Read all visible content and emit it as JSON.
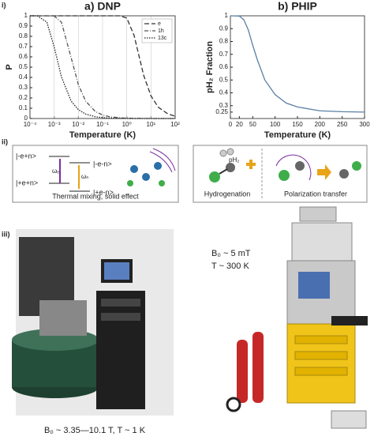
{
  "chart_data": [
    {
      "type": "line",
      "title": "a) DNP",
      "xlabel": "Temperature (K)",
      "ylabel": "P",
      "xscale": "log",
      "xlim": [
        0.0001,
        100
      ],
      "xticks": [
        {
          "value": 0.0001,
          "label": "10⁻⁴"
        },
        {
          "value": 0.001,
          "label": "10⁻³"
        },
        {
          "value": 0.01,
          "label": "10⁻²"
        },
        {
          "value": 0.1,
          "label": "10⁻¹"
        },
        {
          "value": 1,
          "label": "10⁰"
        },
        {
          "value": 10,
          "label": "10¹"
        },
        {
          "value": 100,
          "label": "10²"
        }
      ],
      "ylim": [
        0,
        1
      ],
      "yticks": [
        0,
        0.1,
        0.2,
        0.3,
        0.4,
        0.5,
        0.6,
        0.7,
        0.8,
        0.9,
        1
      ],
      "grid": "x",
      "legend": "upper right",
      "x": [
        0.0001,
        0.0002,
        0.0005,
        0.001,
        0.002,
        0.005,
        0.01,
        0.02,
        0.05,
        0.1,
        0.2,
        0.5,
        1,
        2,
        5,
        10,
        20,
        50,
        100
      ],
      "series": [
        {
          "name": "e",
          "color": "#333333",
          "dash": "6,3",
          "values": [
            1,
            1,
            1,
            1,
            1,
            1,
            1,
            1,
            1,
            1,
            1,
            1,
            0.978,
            0.81,
            0.42,
            0.22,
            0.11,
            0.045,
            0.022
          ]
        },
        {
          "name": "1h",
          "color": "#555555",
          "dash": "5,2,1,2",
          "values": [
            1,
            1,
            1,
            0.998,
            0.937,
            0.594,
            0.329,
            0.169,
            0.068,
            0.034,
            0.017,
            0.007,
            0.003,
            0.002,
            0.001,
            0,
            0,
            0,
            0
          ]
        },
        {
          "name": "13c",
          "color": "#222222",
          "dash": "1.5,1.5",
          "values": [
            1,
            1,
            0.938,
            0.696,
            0.405,
            0.17,
            0.086,
            0.043,
            0.017,
            0.009,
            0.004,
            0.002,
            0.001,
            0,
            0,
            0,
            0,
            0,
            0
          ]
        }
      ]
    },
    {
      "type": "line",
      "title": "b) PHIP",
      "xlabel": "Temperature (K)",
      "ylabel": "pH₂ Fraction",
      "xscale": "linear",
      "xlim": [
        0,
        300
      ],
      "xticks": [
        0,
        20,
        50,
        100,
        150,
        200,
        250,
        300
      ],
      "ylim": [
        0.2,
        1
      ],
      "yticks": [
        0.25,
        0.3,
        0.4,
        0.5,
        0.6,
        0.7,
        0.8,
        0.9,
        1
      ],
      "x": [
        0,
        20,
        30,
        40,
        50,
        60,
        77,
        100,
        125,
        150,
        200,
        250,
        300
      ],
      "series": [
        {
          "name": "pH₂",
          "color": "#5b7fa6",
          "values": [
            1,
            0.998,
            0.97,
            0.89,
            0.77,
            0.66,
            0.5,
            0.386,
            0.32,
            0.29,
            0.26,
            0.253,
            0.25
          ]
        }
      ]
    }
  ],
  "panel_labels": {
    "i": "i)",
    "ii": "ii)",
    "iii": "iii)"
  },
  "dnp_diagram": {
    "states": [
      "|-e+n>",
      "|-e-n>",
      "|+e+n>",
      "|+e-n>"
    ],
    "omega_e": "ωₑ",
    "omega_n": "ωₙ",
    "caption": "Thermal mixing, solid effect"
  },
  "phip_diagram": {
    "molecule": "pH₂",
    "step1": "Hydrogenation",
    "step2": "Polarization transfer"
  },
  "photos": {
    "left_caption": "B₀ ~ 3.35—10.1 T, T ~ 1 K",
    "right_field": "B₀ ~ 5 mT",
    "right_temp": "T ~ 300 K"
  }
}
